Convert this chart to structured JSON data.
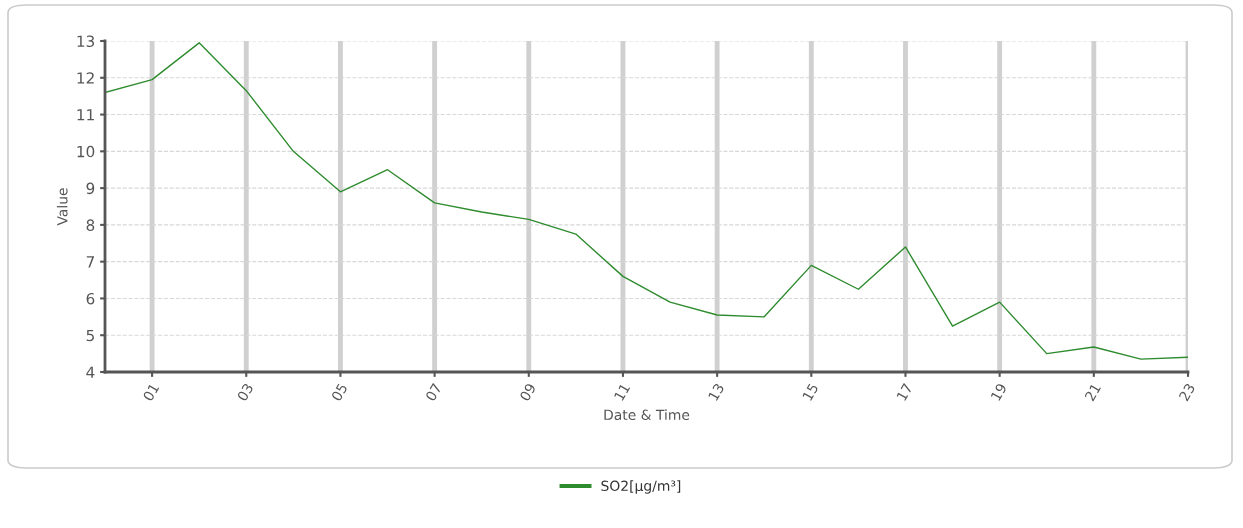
{
  "chart_data": {
    "type": "line",
    "xlabel": "Date & Time",
    "ylabel": "Value",
    "x": [
      0,
      1,
      2,
      3,
      4,
      5,
      6,
      7,
      8,
      9,
      10,
      11,
      12,
      13,
      14,
      15,
      16,
      17,
      18,
      19,
      20,
      21,
      22,
      23
    ],
    "series": [
      {
        "name": "SO2[µg/m³]",
        "color": "#2e8b2e",
        "values": [
          11.6,
          11.95,
          12.95,
          11.65,
          10.0,
          8.9,
          9.5,
          8.6,
          8.35,
          8.15,
          7.75,
          6.6,
          5.9,
          5.55,
          5.5,
          6.9,
          6.25,
          7.4,
          5.25,
          5.9,
          4.5,
          4.68,
          4.35,
          4.4
        ]
      }
    ],
    "xlim": [
      0,
      23
    ],
    "xticks": [
      {
        "value": 1,
        "label": "01"
      },
      {
        "value": 3,
        "label": "03"
      },
      {
        "value": 5,
        "label": "05"
      },
      {
        "value": 7,
        "label": "07"
      },
      {
        "value": 9,
        "label": "09"
      },
      {
        "value": 11,
        "label": "11"
      },
      {
        "value": 13,
        "label": "13"
      },
      {
        "value": 15,
        "label": "15"
      },
      {
        "value": 17,
        "label": "17"
      },
      {
        "value": 19,
        "label": "19"
      },
      {
        "value": 21,
        "label": "21"
      },
      {
        "value": 23,
        "label": "23"
      }
    ],
    "ylim": [
      4,
      13
    ],
    "yticks": [
      4,
      5,
      6,
      7,
      8,
      9,
      10,
      11,
      12,
      13
    ],
    "grid": true,
    "legend": "bottom",
    "marker": "none",
    "line_style": "solid"
  }
}
